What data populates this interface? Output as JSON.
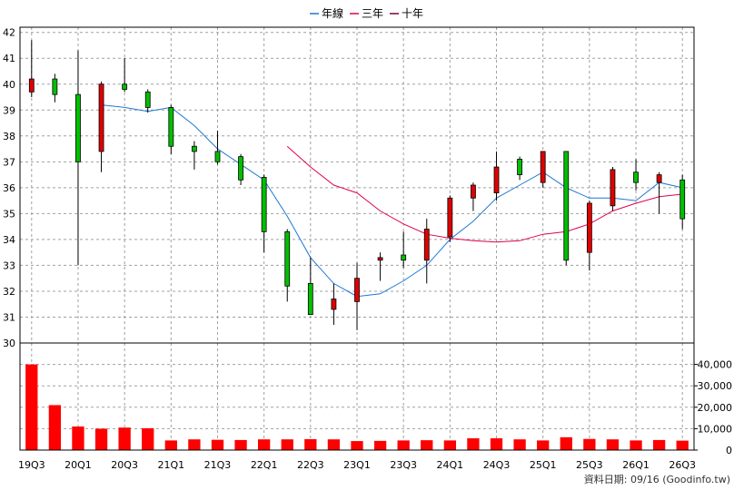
{
  "legend": [
    {
      "label": "年線",
      "color": "#1f77d4"
    },
    {
      "label": "三年",
      "color": "#e00050"
    },
    {
      "label": "十年",
      "color": "#800040"
    }
  ],
  "footer": "資料日期: 09/16  (Goodinfo.tw)",
  "chart_data": {
    "type": "candlestick",
    "price_axis": {
      "ylim": [
        30,
        42.2
      ],
      "ticks": [
        30,
        31,
        32,
        33,
        34,
        35,
        36,
        37,
        38,
        39,
        40,
        41,
        42
      ]
    },
    "volume_axis": {
      "ylim": [
        0,
        50000
      ],
      "ticks": [
        0,
        10000,
        20000,
        30000,
        40000
      ],
      "tick_labels": [
        "0",
        "10,000",
        "20,000",
        "30,000",
        "40,000"
      ]
    },
    "x_tick_labels": [
      {
        "i": 0,
        "label": "19Q3"
      },
      {
        "i": 2,
        "label": "20Q1"
      },
      {
        "i": 4,
        "label": "20Q3"
      },
      {
        "i": 6,
        "label": "21Q1"
      },
      {
        "i": 8,
        "label": "21Q3"
      },
      {
        "i": 10,
        "label": "22Q1"
      },
      {
        "i": 12,
        "label": "22Q3"
      },
      {
        "i": 14,
        "label": "23Q1"
      },
      {
        "i": 16,
        "label": "23Q3"
      },
      {
        "i": 18,
        "label": "24Q1"
      },
      {
        "i": 20,
        "label": "24Q3"
      },
      {
        "i": 22,
        "label": "25Q1"
      },
      {
        "i": 24,
        "label": "25Q3"
      },
      {
        "i": 26,
        "label": "26Q1"
      },
      {
        "i": 28,
        "label": "26Q3"
      }
    ],
    "candles": [
      {
        "o": 39.7,
        "h": 41.7,
        "l": 39.5,
        "c": 40.2
      },
      {
        "o": 40.2,
        "h": 40.4,
        "l": 39.3,
        "c": 39.6
      },
      {
        "o": 39.6,
        "h": 41.3,
        "l": 33.0,
        "c": 37.0
      },
      {
        "o": 37.4,
        "h": 40.1,
        "l": 36.6,
        "c": 40.0
      },
      {
        "o": 40.0,
        "h": 41.0,
        "l": 39.7,
        "c": 39.8
      },
      {
        "o": 39.7,
        "h": 39.8,
        "l": 38.9,
        "c": 39.1
      },
      {
        "o": 39.1,
        "h": 39.2,
        "l": 37.3,
        "c": 37.6
      },
      {
        "o": 37.6,
        "h": 37.8,
        "l": 36.7,
        "c": 37.4
      },
      {
        "o": 37.4,
        "h": 38.2,
        "l": 36.9,
        "c": 37.0
      },
      {
        "o": 37.2,
        "h": 37.3,
        "l": 36.1,
        "c": 36.3
      },
      {
        "o": 36.4,
        "h": 36.5,
        "l": 33.5,
        "c": 34.3
      },
      {
        "o": 34.3,
        "h": 34.4,
        "l": 31.6,
        "c": 32.2
      },
      {
        "o": 32.3,
        "h": 33.3,
        "l": 31.1,
        "c": 31.1
      },
      {
        "o": 31.3,
        "h": 32.3,
        "l": 30.7,
        "c": 31.7
      },
      {
        "o": 31.6,
        "h": 33.1,
        "l": 30.5,
        "c": 32.5
      },
      {
        "o": 33.2,
        "h": 33.5,
        "l": 32.4,
        "c": 33.3
      },
      {
        "o": 33.4,
        "h": 34.3,
        "l": 32.9,
        "c": 33.2
      },
      {
        "o": 33.2,
        "h": 34.8,
        "l": 32.3,
        "c": 34.4
      },
      {
        "o": 34.1,
        "h": 35.7,
        "l": 33.9,
        "c": 35.6
      },
      {
        "o": 35.6,
        "h": 36.2,
        "l": 35.1,
        "c": 36.1
      },
      {
        "o": 35.8,
        "h": 37.4,
        "l": 35.5,
        "c": 36.8
      },
      {
        "o": 37.1,
        "h": 37.2,
        "l": 36.3,
        "c": 36.5
      },
      {
        "o": 36.2,
        "h": 37.4,
        "l": 36.0,
        "c": 37.4
      },
      {
        "o": 37.4,
        "h": 37.4,
        "l": 33.0,
        "c": 33.2
      },
      {
        "o": 33.5,
        "h": 35.5,
        "l": 32.8,
        "c": 35.4
      },
      {
        "o": 35.3,
        "h": 36.8,
        "l": 35.1,
        "c": 36.7
      },
      {
        "o": 36.6,
        "h": 37.1,
        "l": 35.9,
        "c": 36.2
      },
      {
        "o": 36.2,
        "h": 36.6,
        "l": 35.0,
        "c": 36.5
      },
      {
        "o": 36.3,
        "h": 36.5,
        "l": 34.4,
        "c": 34.8
      }
    ],
    "lines": [
      {
        "name": "年線",
        "color": "#1f77d4",
        "points": [
          [
            3,
            39.2
          ],
          [
            4,
            39.1
          ],
          [
            5,
            38.95
          ],
          [
            6,
            39.1
          ],
          [
            7,
            38.4
          ],
          [
            8,
            37.5
          ],
          [
            9,
            36.9
          ],
          [
            10,
            36.3
          ],
          [
            11,
            34.9
          ],
          [
            12,
            33.3
          ],
          [
            13,
            32.3
          ],
          [
            14,
            31.8
          ],
          [
            15,
            31.9
          ],
          [
            16,
            32.4
          ],
          [
            17,
            33.0
          ],
          [
            18,
            34.0
          ],
          [
            19,
            34.7
          ],
          [
            20,
            35.6
          ],
          [
            21,
            36.1
          ],
          [
            22,
            36.6
          ],
          [
            23,
            36.0
          ],
          [
            24,
            35.6
          ],
          [
            25,
            35.6
          ],
          [
            26,
            35.5
          ],
          [
            27,
            36.2
          ],
          [
            28,
            36.0
          ]
        ]
      },
      {
        "name": "三年",
        "color": "#e00050",
        "points": [
          [
            11,
            37.6
          ],
          [
            12,
            36.8
          ],
          [
            13,
            36.1
          ],
          [
            14,
            35.8
          ],
          [
            15,
            35.1
          ],
          [
            16,
            34.6
          ],
          [
            17,
            34.2
          ],
          [
            18,
            34.05
          ],
          [
            19,
            33.95
          ],
          [
            20,
            33.9
          ],
          [
            21,
            33.95
          ],
          [
            22,
            34.2
          ],
          [
            23,
            34.3
          ],
          [
            24,
            34.6
          ],
          [
            25,
            35.1
          ],
          [
            26,
            35.4
          ],
          [
            27,
            35.65
          ],
          [
            28,
            35.75
          ]
        ]
      },
      {
        "name": "十年",
        "color": "#800040",
        "points": []
      }
    ],
    "volumes": [
      40000,
      21000,
      11000,
      10000,
      10500,
      10200,
      4500,
      5000,
      4800,
      4700,
      5000,
      5000,
      5100,
      5000,
      4200,
      4300,
      4500,
      4600,
      4500,
      5500,
      5500,
      5000,
      4500,
      6000,
      5200,
      5000,
      4500,
      4700,
      4400
    ]
  }
}
